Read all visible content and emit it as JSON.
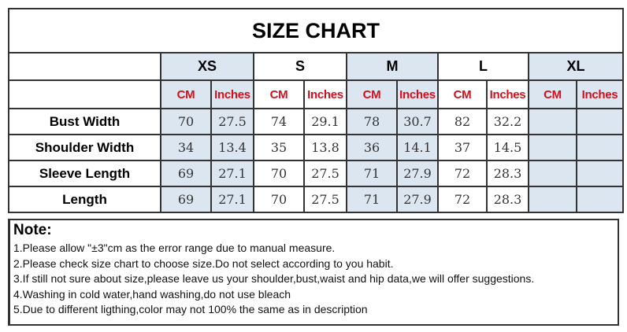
{
  "title": "SIZE CHART",
  "sizes": [
    "XS",
    "S",
    "M",
    "L",
    "XL"
  ],
  "units": {
    "cm": "CM",
    "in": "Inches"
  },
  "rows": [
    {
      "label": "Bust Width",
      "values": [
        "70",
        "27.5",
        "74",
        "29.1",
        "78",
        "30.7",
        "82",
        "32.2",
        "",
        ""
      ]
    },
    {
      "label": "Shoulder Width",
      "values": [
        "34",
        "13.4",
        "35",
        "13.8",
        "36",
        "14.1",
        "37",
        "14.5",
        "",
        ""
      ]
    },
    {
      "label": "Sleeve Length",
      "values": [
        "69",
        "27.1",
        "70",
        "27.5",
        "71",
        "27.9",
        "72",
        "28.3",
        "",
        ""
      ]
    },
    {
      "label": "Length",
      "values": [
        "69",
        "27.1",
        "70",
        "27.5",
        "71",
        "27.9",
        "72",
        "28.3",
        "",
        ""
      ]
    }
  ],
  "note": {
    "heading": "Note:",
    "lines": [
      "1.Please allow \"±3\"cm as the error range due to manual measure.",
      "2.Please check size chart to choose size.Do not select according to you habit.",
      "3.If still not sure about size,please leave us your shoulder,bust,waist and hip data,we will offer suggestions.",
      "4.Washing in cold water,hand washing,do not use bleach",
      "5.Due to different ligthing,color may not 100% the same as in description"
    ]
  },
  "colors": {
    "header_shade": "#dce6f1",
    "unit_text": "#d0101c"
  }
}
